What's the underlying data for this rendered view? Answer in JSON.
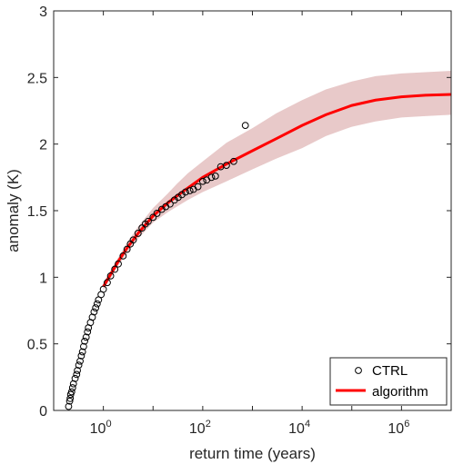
{
  "chart_data": {
    "type": "scatter",
    "title": "",
    "xlabel": "return time (years)",
    "ylabel": "anomaly (K)",
    "xscale": "log",
    "xlim": [
      0.1,
      10000000
    ],
    "ylim": [
      0,
      3
    ],
    "grid": false,
    "legend_position": "bottom-right",
    "x_ticks": [
      {
        "base": "10",
        "exp": "0",
        "value": 1
      },
      {
        "base": "10",
        "exp": "2",
        "value": 100
      },
      {
        "base": "10",
        "exp": "4",
        "value": 10000
      },
      {
        "base": "10",
        "exp": "6",
        "value": 1000000
      }
    ],
    "y_ticks": [
      "0",
      "0.5",
      "1",
      "1.5",
      "2",
      "2.5",
      "3"
    ],
    "series": [
      {
        "name": "CTRL",
        "kind": "scatter",
        "marker": "open-circle",
        "color": "#000000",
        "points": [
          [
            0.2,
            0.03
          ],
          [
            0.21,
            0.07
          ],
          [
            0.215,
            0.09
          ],
          [
            0.22,
            0.12
          ],
          [
            0.23,
            0.14
          ],
          [
            0.24,
            0.17
          ],
          [
            0.25,
            0.2
          ],
          [
            0.27,
            0.24
          ],
          [
            0.29,
            0.27
          ],
          [
            0.3,
            0.3
          ],
          [
            0.32,
            0.34
          ],
          [
            0.34,
            0.37
          ],
          [
            0.36,
            0.41
          ],
          [
            0.38,
            0.44
          ],
          [
            0.4,
            0.48
          ],
          [
            0.42,
            0.52
          ],
          [
            0.45,
            0.55
          ],
          [
            0.48,
            0.59
          ],
          [
            0.5,
            0.62
          ],
          [
            0.55,
            0.66
          ],
          [
            0.6,
            0.7
          ],
          [
            0.65,
            0.74
          ],
          [
            0.7,
            0.77
          ],
          [
            0.75,
            0.8
          ],
          [
            0.8,
            0.83
          ],
          [
            0.9,
            0.87
          ],
          [
            1.0,
            0.91
          ],
          [
            1.2,
            0.96
          ],
          [
            1.4,
            1.01
          ],
          [
            1.7,
            1.06
          ],
          [
            2.0,
            1.1
          ],
          [
            2.5,
            1.16
          ],
          [
            3.0,
            1.21
          ],
          [
            3.5,
            1.25
          ],
          [
            4.0,
            1.28
          ],
          [
            5.0,
            1.33
          ],
          [
            6.0,
            1.37
          ],
          [
            7.0,
            1.4
          ],
          [
            8.0,
            1.42
          ],
          [
            10.0,
            1.45
          ],
          [
            12.0,
            1.48
          ],
          [
            15.0,
            1.51
          ],
          [
            18.0,
            1.53
          ],
          [
            22.0,
            1.55
          ],
          [
            27.0,
            1.58
          ],
          [
            32.0,
            1.6
          ],
          [
            38.0,
            1.62
          ],
          [
            45.0,
            1.64
          ],
          [
            55.0,
            1.65
          ],
          [
            65.0,
            1.66
          ],
          [
            80.0,
            1.68
          ],
          [
            100.0,
            1.72
          ],
          [
            120.0,
            1.73
          ],
          [
            150.0,
            1.75
          ],
          [
            180.0,
            1.76
          ],
          [
            230.0,
            1.83
          ],
          [
            300.0,
            1.84
          ],
          [
            420.0,
            1.87
          ],
          [
            720.0,
            2.14
          ]
        ]
      },
      {
        "name": "algorithm",
        "kind": "line",
        "color": "#ff0000",
        "x": [
          1,
          2,
          3,
          5,
          10,
          20,
          30,
          50,
          100,
          300,
          1000,
          3000,
          10000,
          30000,
          100000,
          300000,
          1000000,
          3000000,
          10000000
        ],
        "y": [
          0.93,
          1.12,
          1.22,
          1.33,
          1.46,
          1.56,
          1.61,
          1.67,
          1.75,
          1.85,
          1.95,
          2.04,
          2.14,
          2.22,
          2.29,
          2.33,
          2.355,
          2.367,
          2.373
        ],
        "band_lower": [
          0.9,
          1.09,
          1.18,
          1.29,
          1.41,
          1.49,
          1.53,
          1.58,
          1.64,
          1.72,
          1.81,
          1.89,
          1.97,
          2.06,
          2.13,
          2.17,
          2.2,
          2.21,
          2.22
        ],
        "band_upper": [
          0.96,
          1.15,
          1.26,
          1.38,
          1.52,
          1.63,
          1.7,
          1.78,
          1.87,
          2.01,
          2.12,
          2.23,
          2.33,
          2.41,
          2.47,
          2.51,
          2.53,
          2.54,
          2.55
        ],
        "band_color": "#e8c9c9"
      }
    ]
  }
}
